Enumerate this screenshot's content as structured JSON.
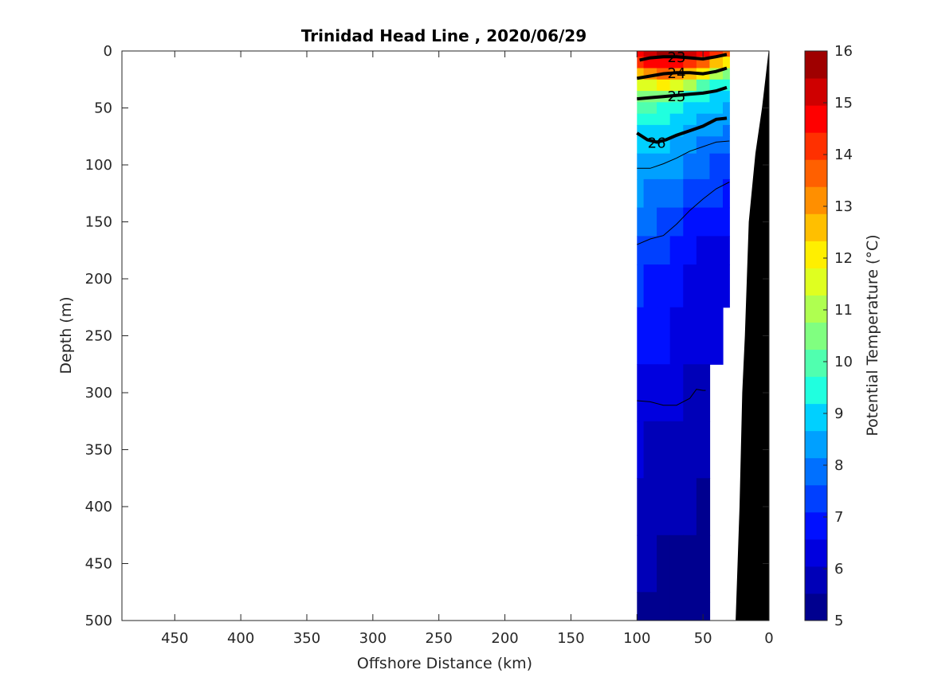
{
  "chart_data": {
    "type": "heatmap",
    "title": "Trinidad Head Line , 2020/06/29",
    "xlabel": "Offshore Distance (km)",
    "ylabel": "Depth (m)",
    "colorbar_label": "Potential Temperature (°C)",
    "xlim": [
      490,
      0
    ],
    "ylim": [
      0,
      500
    ],
    "x_ticks": [
      "450",
      "400",
      "350",
      "300",
      "250",
      "200",
      "150",
      "100",
      "50",
      "0"
    ],
    "y_ticks": [
      "0",
      "50",
      "100",
      "150",
      "200",
      "250",
      "300",
      "350",
      "400",
      "450",
      "500"
    ],
    "colorbar_ticks": [
      "5",
      "6",
      "7",
      "8",
      "9",
      "10",
      "11",
      "12",
      "13",
      "14",
      "15",
      "16"
    ],
    "colorbar_range": [
      5,
      16
    ],
    "colormap": [
      "#00008f",
      "#0000b8",
      "#0000df",
      "#0010ff",
      "#0040ff",
      "#0070ff",
      "#00a0ff",
      "#00d0ff",
      "#20ffdf",
      "#50ffaf",
      "#80ff80",
      "#afff50",
      "#dfff20",
      "#ffef00",
      "#ffbf00",
      "#ff8f00",
      "#ff6000",
      "#ff3000",
      "#ff0000",
      "#cf0000",
      "#9f0000"
    ],
    "section_x": [
      100,
      90,
      80,
      70,
      60,
      50,
      40,
      30
    ],
    "bottom_depth": [
      500,
      500,
      500,
      500,
      500,
      500,
      280,
      230
    ],
    "depths": [
      0,
      10,
      20,
      30,
      40,
      50,
      60,
      70,
      80,
      100,
      125,
      150,
      175,
      200,
      250,
      300,
      350,
      400,
      450,
      500
    ],
    "temperature": [
      [
        14.6,
        15.4,
        15.8,
        15.6,
        15.1,
        14.8,
        14.2,
        13.4
      ],
      [
        14.0,
        14.6,
        14.9,
        14.7,
        14.2,
        13.5,
        12.8,
        12.0
      ],
      [
        12.8,
        13.3,
        13.5,
        13.2,
        12.6,
        11.9,
        11.0,
        10.4
      ],
      [
        11.5,
        11.8,
        11.9,
        11.4,
        10.9,
        10.2,
        9.6,
        9.3
      ],
      [
        10.4,
        10.5,
        10.4,
        10.0,
        9.6,
        9.3,
        9.1,
        8.9
      ],
      [
        9.8,
        9.8,
        9.6,
        9.3,
        9.1,
        8.9,
        8.7,
        8.6
      ],
      [
        9.4,
        9.3,
        9.2,
        9.0,
        8.8,
        8.6,
        8.4,
        8.3
      ],
      [
        9.1,
        9.1,
        9.0,
        8.8,
        8.5,
        8.3,
        8.2,
        8.1
      ],
      [
        8.9,
        8.9,
        8.8,
        8.6,
        8.3,
        8.1,
        8.0,
        7.9
      ],
      [
        8.6,
        8.6,
        8.5,
        8.2,
        7.9,
        7.7,
        7.6,
        7.5
      ],
      [
        8.2,
        8.1,
        8.0,
        7.7,
        7.4,
        7.2,
        7.1,
        7.0
      ],
      [
        7.8,
        7.7,
        7.5,
        7.2,
        6.9,
        6.8,
        6.7,
        6.6
      ],
      [
        7.4,
        7.3,
        7.1,
        6.9,
        6.7,
        6.5,
        6.5,
        6.4
      ],
      [
        7.1,
        7.0,
        6.9,
        6.7,
        6.5,
        6.4,
        6.3,
        6.2
      ],
      [
        6.8,
        6.7,
        6.6,
        6.4,
        6.3,
        6.2,
        6.1,
        6.1
      ],
      [
        6.4,
        6.3,
        6.2,
        6.1,
        6.0,
        5.9,
        5.9,
        5.9
      ],
      [
        6.1,
        6.0,
        5.9,
        5.8,
        5.8,
        5.7,
        5.7,
        5.7
      ],
      [
        5.9,
        5.8,
        5.7,
        5.6,
        5.6,
        5.5,
        5.5,
        5.5
      ],
      [
        5.7,
        5.6,
        5.5,
        5.4,
        5.4,
        5.3,
        5.3,
        5.3
      ],
      [
        5.5,
        5.4,
        5.3,
        5.2,
        5.2,
        5.1,
        5.1,
        5.1
      ]
    ],
    "density_contours": [
      {
        "label": "23",
        "x": [
          98,
          90,
          80,
          70,
          60,
          50,
          40,
          32
        ],
        "depth": [
          8,
          6,
          5,
          5,
          6,
          7,
          5,
          3
        ]
      },
      {
        "label": "24",
        "x": [
          100,
          90,
          80,
          70,
          60,
          50,
          40,
          32
        ],
        "depth": [
          24,
          22,
          20,
          19,
          19,
          20,
          18,
          15
        ]
      },
      {
        "label": "25",
        "x": [
          100,
          90,
          80,
          70,
          60,
          50,
          40,
          32
        ],
        "depth": [
          42,
          41,
          40,
          39,
          38,
          37,
          35,
          32
        ]
      },
      {
        "label": "26",
        "x": [
          100,
          92,
          85,
          78,
          70,
          60,
          50,
          40,
          32
        ],
        "depth": [
          72,
          78,
          80,
          78,
          74,
          70,
          66,
          60,
          59
        ]
      }
    ],
    "thin_contour_depths": [
      {
        "x": [
          100,
          90,
          80,
          70,
          60,
          50,
          40,
          30
        ],
        "depth": [
          103,
          103,
          99,
          94,
          88,
          84,
          80,
          79
        ]
      },
      {
        "x": [
          100,
          90,
          80,
          70,
          60,
          50,
          40,
          30
        ],
        "depth": [
          170,
          165,
          162,
          152,
          140,
          130,
          121,
          115
        ]
      },
      {
        "x": [
          100,
          90,
          80,
          70,
          60,
          55,
          50,
          48
        ],
        "depth": [
          307,
          308,
          311,
          311,
          305,
          297,
          298,
          298
        ]
      }
    ],
    "bathymetry": {
      "x": [
        0,
        2,
        5,
        10,
        15,
        18,
        20,
        22,
        25
      ],
      "depth": [
        0,
        20,
        50,
        90,
        150,
        250,
        300,
        400,
        500
      ]
    }
  }
}
